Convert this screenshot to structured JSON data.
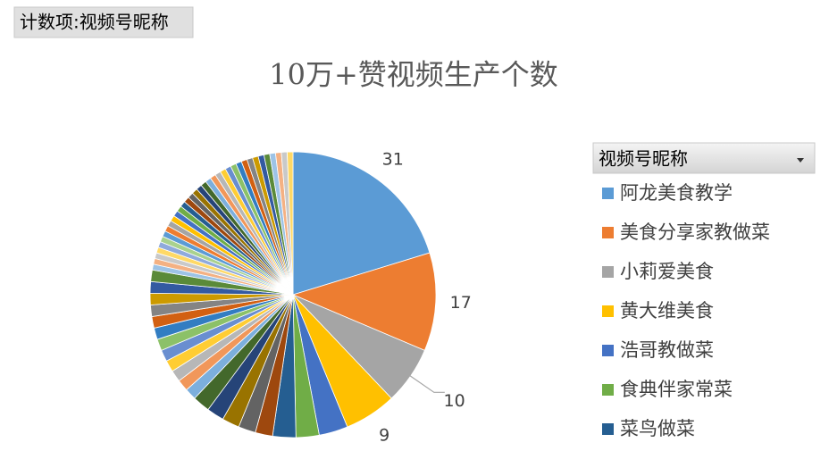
{
  "field_button": "计数项:视频号昵称",
  "chart_data": {
    "type": "pie",
    "title": "10万+赞视频生产个数",
    "legend_title": "视频号昵称",
    "categories": [
      "阿龙美食教学",
      "美食分享家教做菜",
      "小莉爱美食",
      "黄大维美食",
      "浩哥教做菜",
      "食典伴家常菜",
      "菜鸟做菜",
      null,
      null,
      null,
      null,
      null,
      null,
      null,
      null,
      null,
      null,
      null,
      null,
      null,
      null,
      null,
      null,
      null,
      null,
      null,
      null,
      null,
      null,
      null,
      null,
      null,
      null,
      null,
      null,
      null,
      null,
      null,
      null,
      null,
      null,
      null,
      null,
      null,
      null,
      null,
      null,
      null,
      null,
      null,
      null,
      null,
      null,
      null,
      null,
      null,
      null,
      null
    ],
    "values": [
      31,
      17,
      10,
      9,
      5,
      4,
      4,
      3,
      3,
      3,
      3,
      3,
      2,
      2,
      2,
      2,
      2,
      2,
      2,
      2,
      2,
      2,
      2,
      2,
      1,
      1,
      1,
      1,
      1,
      1,
      1,
      1,
      1,
      1,
      1,
      1,
      1,
      1,
      1,
      1,
      1,
      1,
      1,
      1,
      1,
      1,
      1,
      1,
      1,
      1,
      1,
      1,
      1,
      1,
      1,
      1,
      1,
      1
    ],
    "labeled_count": 4,
    "colors": [
      "#5B9BD5",
      "#ED7D31",
      "#A5A5A5",
      "#FFC000",
      "#4472C4",
      "#70AD47",
      "#255E91",
      "#9E480E",
      "#636363",
      "#997300",
      "#264478",
      "#43682B",
      "#7CAFDD",
      "#F1975A",
      "#B7B7B7",
      "#FFCD33",
      "#698ED0",
      "#8CC168",
      "#327DC2",
      "#D26012",
      "#848484",
      "#CC9A00",
      "#335AA1",
      "#5A8A39",
      "#9DC3E6",
      "#F4B183",
      "#C9C9C9",
      "#FFD966",
      "#8FAADC",
      "#A9D18E"
    ],
    "legend_count": 7
  }
}
